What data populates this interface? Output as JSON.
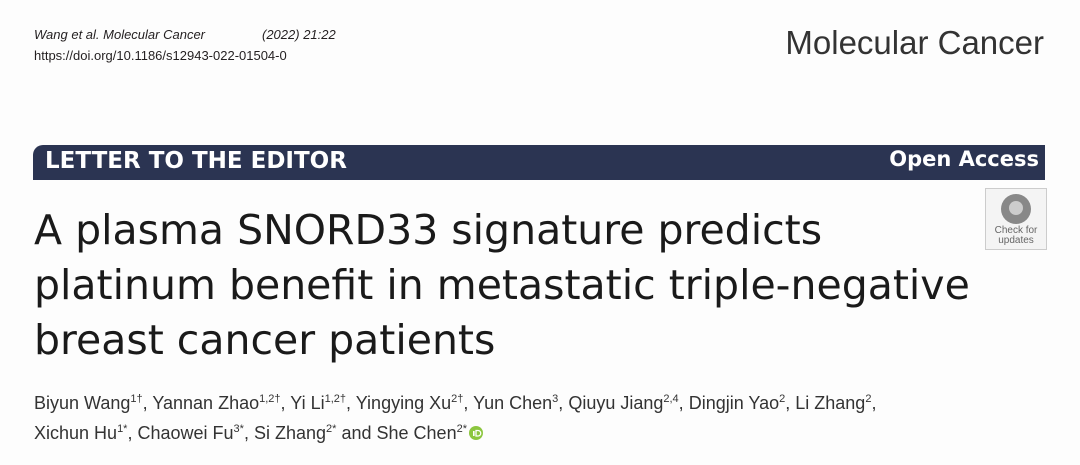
{
  "header": {
    "citation": "Wang et al. Molecular Cancer",
    "issue": "(2022) 21:22",
    "doi": "https://doi.org/10.1186/s12943-022-01504-0",
    "journal": "Molecular Cancer"
  },
  "banner": {
    "article_type": "LETTER TO THE EDITOR",
    "access": "Open Access"
  },
  "badge": {
    "lines": [
      "Check for",
      "updates"
    ]
  },
  "title_lines": [
    "A plasma SNORD33 signature predicts",
    "platinum benefit in metastatic triple-negative",
    "breast cancer patients"
  ],
  "authors": {
    "separator": ",",
    "conjunction": "and",
    "lines": [
      [
        {
          "name": "Biyun Wang",
          "sup": "1†"
        },
        {
          "name": "Yannan Zhao",
          "sup": "1,2†"
        },
        {
          "name": "Yi Li",
          "sup": "1,2†"
        },
        {
          "name": "Yingying Xu",
          "sup": "2†"
        },
        {
          "name": "Yun Chen",
          "sup": "3"
        },
        {
          "name": "Qiuyu Jiang",
          "sup": "2,4"
        },
        {
          "name": "Dingjin Yao",
          "sup": "2"
        },
        {
          "name": "Li Zhang",
          "sup": "2"
        }
      ],
      [
        {
          "name": "Xichun Hu",
          "sup": "1*"
        },
        {
          "name": "Chaowei Fu",
          "sup": "3*"
        },
        {
          "name": "Si Zhang",
          "sup": "2*"
        },
        {
          "name": "She Chen",
          "sup": "2*"
        }
      ]
    ]
  }
}
